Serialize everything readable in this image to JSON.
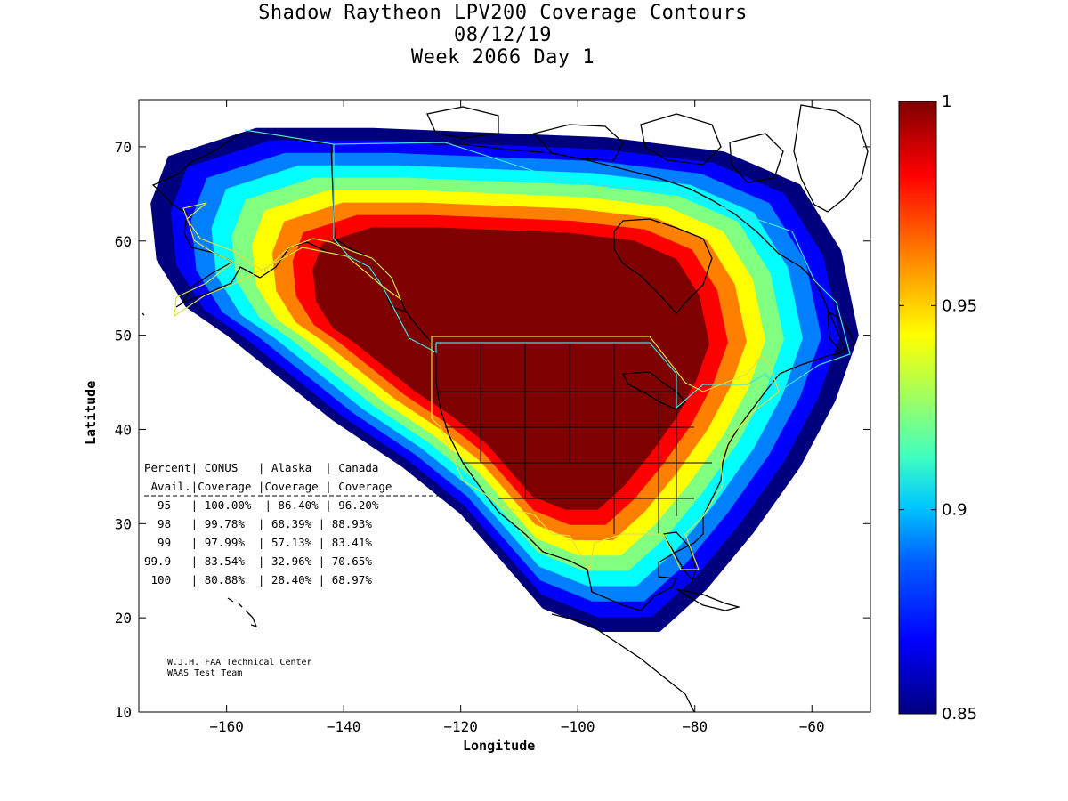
{
  "title_lines": [
    "Shadow Raytheon LPV200 Coverage Contours",
    "08/12/19",
    "Week 2066 Day 1"
  ],
  "chart_data": {
    "type": "heatmap",
    "xlabel": "Longitude",
    "ylabel": "Latitude",
    "xlim": [
      -175,
      -50
    ],
    "ylim": [
      10,
      75
    ],
    "x_ticks": [
      -160,
      -140,
      -120,
      -100,
      -80,
      -60
    ],
    "y_ticks": [
      10,
      20,
      30,
      40,
      50,
      60,
      70
    ],
    "colorbar": {
      "range": [
        0.85,
        1
      ],
      "ticks": [
        0.85,
        0.9,
        0.95,
        1
      ],
      "tick_labels": [
        "0.85",
        "0.9",
        "0.95",
        "1"
      ],
      "colors": [
        "#00007f",
        "#0000ff",
        "#0080ff",
        "#00ffff",
        "#80ff80",
        "#ffff00",
        "#ff8000",
        "#ff0000",
        "#7f0000"
      ]
    },
    "coverage_color_max": "#7f0000"
  },
  "stats_table": {
    "header": [
      "Percent| CONUS   | Alaska  | Canada",
      " Avail.|Coverage |Coverage | Coverage"
    ],
    "rows": [
      "  95   | 100.00%  | 86.40% | 96.20%",
      "  98   | 99.78%  | 68.39% | 88.93%",
      "  99   | 97.99%  | 57.13% | 83.41%",
      "99.9   | 83.54%  | 32.96% | 70.65%",
      " 100   | 80.88%  | 28.40% | 68.97%"
    ]
  },
  "credits": [
    "W.J.H. FAA Technical Center",
    "WAAS Test Team"
  ]
}
